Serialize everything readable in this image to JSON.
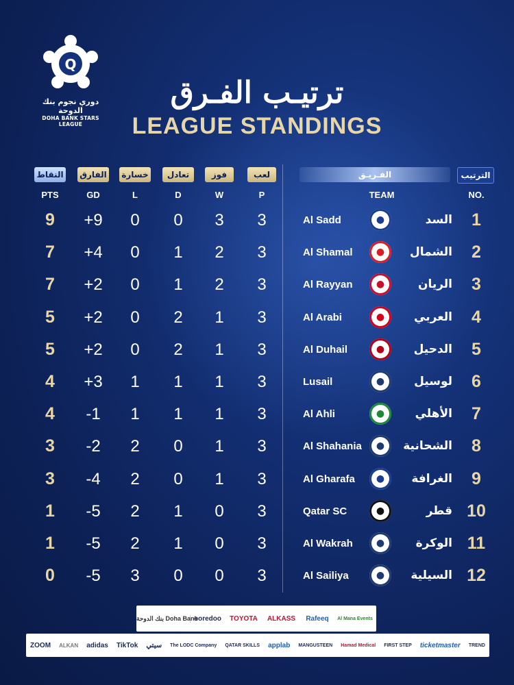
{
  "league": {
    "logo_ar": "دوري نجوم بنك الدوحة",
    "logo_en": "DOHA BANK STARS LEAGUE"
  },
  "title": {
    "ar": "ترتيـب الفـرق",
    "en": "LEAGUE STANDINGS"
  },
  "headers": {
    "pts": {
      "ar": "النقاط",
      "en": "PTS"
    },
    "gd": {
      "ar": "الفارق",
      "en": "GD"
    },
    "l": {
      "ar": "خسارة",
      "en": "L"
    },
    "d": {
      "ar": "تعادل",
      "en": "D"
    },
    "w": {
      "ar": "فوز",
      "en": "W"
    },
    "p": {
      "ar": "لعب",
      "en": "P"
    },
    "team": {
      "ar": "الفـريـق",
      "en": "TEAM"
    },
    "no": {
      "ar": "الترتيب",
      "en": "NO."
    }
  },
  "standings": [
    {
      "no": "1",
      "en": "Al Sadd",
      "ar": "السد",
      "pts": "9",
      "gd": "+9",
      "l": "0",
      "d": "0",
      "w": "3",
      "p": "3",
      "badge_color": "#1a3d8f"
    },
    {
      "no": "2",
      "en": "Al Shamal",
      "ar": "الشمال",
      "pts": "7",
      "gd": "+4",
      "l": "0",
      "d": "1",
      "w": "2",
      "p": "3",
      "badge_color": "#d61f26"
    },
    {
      "no": "3",
      "en": "Al Rayyan",
      "ar": "الريان",
      "pts": "7",
      "gd": "+2",
      "l": "0",
      "d": "1",
      "w": "2",
      "p": "3",
      "badge_color": "#c8102e"
    },
    {
      "no": "4",
      "en": "Al Arabi",
      "ar": "العربي",
      "pts": "5",
      "gd": "+2",
      "l": "0",
      "d": "2",
      "w": "1",
      "p": "3",
      "badge_color": "#d4001a"
    },
    {
      "no": "5",
      "en": "Al Duhail",
      "ar": "الدحيل",
      "pts": "5",
      "gd": "+2",
      "l": "0",
      "d": "2",
      "w": "1",
      "p": "3",
      "badge_color": "#b3001b"
    },
    {
      "no": "6",
      "en": "Lusail",
      "ar": "لوسيل",
      "pts": "4",
      "gd": "+3",
      "l": "1",
      "d": "1",
      "w": "1",
      "p": "3",
      "badge_color": "#1f3a6e"
    },
    {
      "no": "7",
      "en": "Al Ahli",
      "ar": "الأهلي",
      "pts": "4",
      "gd": "-1",
      "l": "1",
      "d": "1",
      "w": "1",
      "p": "3",
      "badge_color": "#1d8a3a"
    },
    {
      "no": "8",
      "en": "Al Shahania",
      "ar": "الشحانية",
      "pts": "3",
      "gd": "-2",
      "l": "2",
      "d": "0",
      "w": "1",
      "p": "3",
      "badge_color": "#1f3a6e"
    },
    {
      "no": "9",
      "en": "Al Gharafa",
      "ar": "الغرافة",
      "pts": "3",
      "gd": "-4",
      "l": "2",
      "d": "0",
      "w": "1",
      "p": "3",
      "badge_color": "#1a3d8f"
    },
    {
      "no": "10",
      "en": "Qatar SC",
      "ar": "قطر",
      "pts": "1",
      "gd": "-5",
      "l": "2",
      "d": "1",
      "w": "0",
      "p": "3",
      "badge_color": "#111111"
    },
    {
      "no": "11",
      "en": "Al Wakrah",
      "ar": "الوكرة",
      "pts": "1",
      "gd": "-5",
      "l": "2",
      "d": "1",
      "w": "0",
      "p": "3",
      "badge_color": "#1f3a6e"
    },
    {
      "no": "12",
      "en": "Al Sailiya",
      "ar": "السيلية",
      "pts": "0",
      "gd": "-5",
      "l": "3",
      "d": "0",
      "w": "0",
      "p": "3",
      "badge_color": "#1f3a6e"
    }
  ],
  "sponsors": {
    "top": [
      "بنك الدوحة Doha Bank",
      "ooredoo",
      "TOYOTA",
      "ALKASS",
      "Rafeeq",
      "Al Mana Events"
    ],
    "bottom": [
      "ZOOM",
      "ALKAN",
      "adidas",
      "TikTok",
      "سيتي",
      "The LODC Company",
      "QATAR SKILLS",
      "applab",
      "MANGUSTEEN",
      "Hamad Medical",
      "FIRST STEP",
      "ticketmaster",
      "TREND"
    ]
  }
}
